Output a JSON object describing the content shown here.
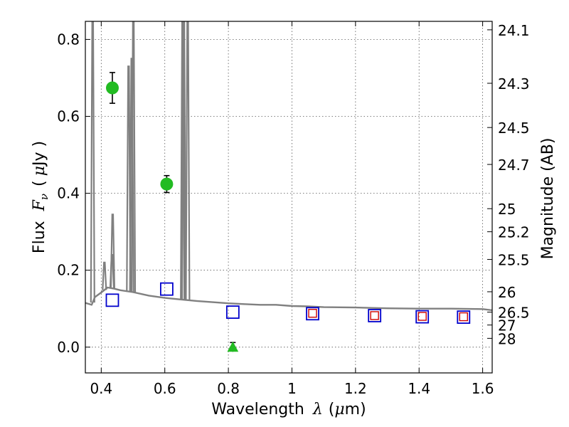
{
  "chart_data": {
    "type": "scatter",
    "xlabel_prefix": "Wavelength",
    "xlabel_symbol": "λ",
    "xlabel_unit_open": "(",
    "xlabel_unit_mu": "μ",
    "xlabel_unit_rest": "m)",
    "ylabel_prefix": "Flux",
    "ylabel_symbol": "F",
    "ylabel_sub": "ν",
    "ylabel_unit_open": "(",
    "ylabel_unit_mu": "μ",
    "ylabel_unit_rest": "Jy )",
    "y2label": "Magnitude (AB)",
    "xlim": [
      0.35,
      1.63
    ],
    "ylim": [
      -0.067,
      0.847
    ],
    "x_ticks": [
      0.4,
      0.6,
      0.8,
      1.0,
      1.2,
      1.4,
      1.6
    ],
    "x_tick_labels": [
      "0.4",
      "0.6",
      "0.8",
      "1",
      "1.2",
      "1.4",
      "1.6"
    ],
    "y_ticks": [
      0.0,
      0.2,
      0.4,
      0.6,
      0.8
    ],
    "y_tick_labels": [
      "0.0",
      "0.2",
      "0.4",
      "0.6",
      "0.8"
    ],
    "mag_ticks": [
      {
        "label": "24.1",
        "flux": 0.825
      },
      {
        "label": "24.3",
        "flux": 0.686
      },
      {
        "label": "24.5",
        "flux": 0.571
      },
      {
        "label": "24.7",
        "flux": 0.475
      },
      {
        "label": "25",
        "flux": 0.36
      },
      {
        "label": "25.2",
        "flux": 0.3
      },
      {
        "label": "25.5",
        "flux": 0.228
      },
      {
        "label": "26",
        "flux": 0.144
      },
      {
        "label": "26.5",
        "flux": 0.091
      },
      {
        "label": "27",
        "flux": 0.0575
      },
      {
        "label": "28",
        "flux": 0.0229
      }
    ],
    "detections": [
      {
        "x": 0.435,
        "y": 0.674,
        "err": 0.04
      },
      {
        "x": 0.606,
        "y": 0.424,
        "err": 0.022
      }
    ],
    "upper_limit": {
      "x": 0.814,
      "y": 0.0,
      "err": 0.012
    },
    "model_blue_squares": [
      {
        "x": 0.435,
        "y": 0.122
      },
      {
        "x": 0.606,
        "y": 0.151
      },
      {
        "x": 0.814,
        "y": 0.091
      },
      {
        "x": 1.065,
        "y": 0.087
      },
      {
        "x": 1.26,
        "y": 0.082
      },
      {
        "x": 1.41,
        "y": 0.079
      },
      {
        "x": 1.54,
        "y": 0.078
      }
    ],
    "model_red_squares": [
      {
        "x": 1.065,
        "y": 0.088
      },
      {
        "x": 1.26,
        "y": 0.082
      },
      {
        "x": 1.41,
        "y": 0.08
      },
      {
        "x": 1.54,
        "y": 0.079
      }
    ],
    "spectrum_continuum": [
      [
        0.35,
        0.115
      ],
      [
        0.37,
        0.11
      ],
      [
        0.38,
        0.13
      ],
      [
        0.4,
        0.142
      ],
      [
        0.42,
        0.155
      ],
      [
        0.44,
        0.152
      ],
      [
        0.46,
        0.148
      ],
      [
        0.5,
        0.143
      ],
      [
        0.55,
        0.134
      ],
      [
        0.6,
        0.128
      ],
      [
        0.65,
        0.124
      ],
      [
        0.7,
        0.12
      ],
      [
        0.75,
        0.117
      ],
      [
        0.8,
        0.114
      ],
      [
        0.85,
        0.112
      ],
      [
        0.9,
        0.11
      ],
      [
        0.95,
        0.11
      ],
      [
        1.0,
        0.107
      ],
      [
        1.05,
        0.106
      ],
      [
        1.1,
        0.104
      ],
      [
        1.2,
        0.103
      ],
      [
        1.3,
        0.101
      ],
      [
        1.4,
        0.1
      ],
      [
        1.5,
        0.1
      ],
      [
        1.6,
        0.099
      ],
      [
        1.63,
        0.096
      ]
    ],
    "emission_lines": [
      {
        "x": 0.373,
        "peak": 0.86
      },
      {
        "x": 0.41,
        "peak": 0.22
      },
      {
        "x": 0.434,
        "peak": 0.24
      },
      {
        "x": 0.436,
        "peak": 0.345
      },
      {
        "x": 0.486,
        "peak": 0.73
      },
      {
        "x": 0.496,
        "peak": 0.75
      },
      {
        "x": 0.501,
        "peak": 0.86
      },
      {
        "x": 0.656,
        "peak": 0.86
      },
      {
        "x": 0.66,
        "peak": 0.86
      },
      {
        "x": 0.672,
        "peak": 0.86
      }
    ],
    "colors": {
      "spectrum": "#808080",
      "detection": "#22bb22",
      "upper_limit": "#22bb22",
      "model_blue": "#0000cc",
      "model_red": "#cc0000",
      "grid": "#555555"
    }
  }
}
